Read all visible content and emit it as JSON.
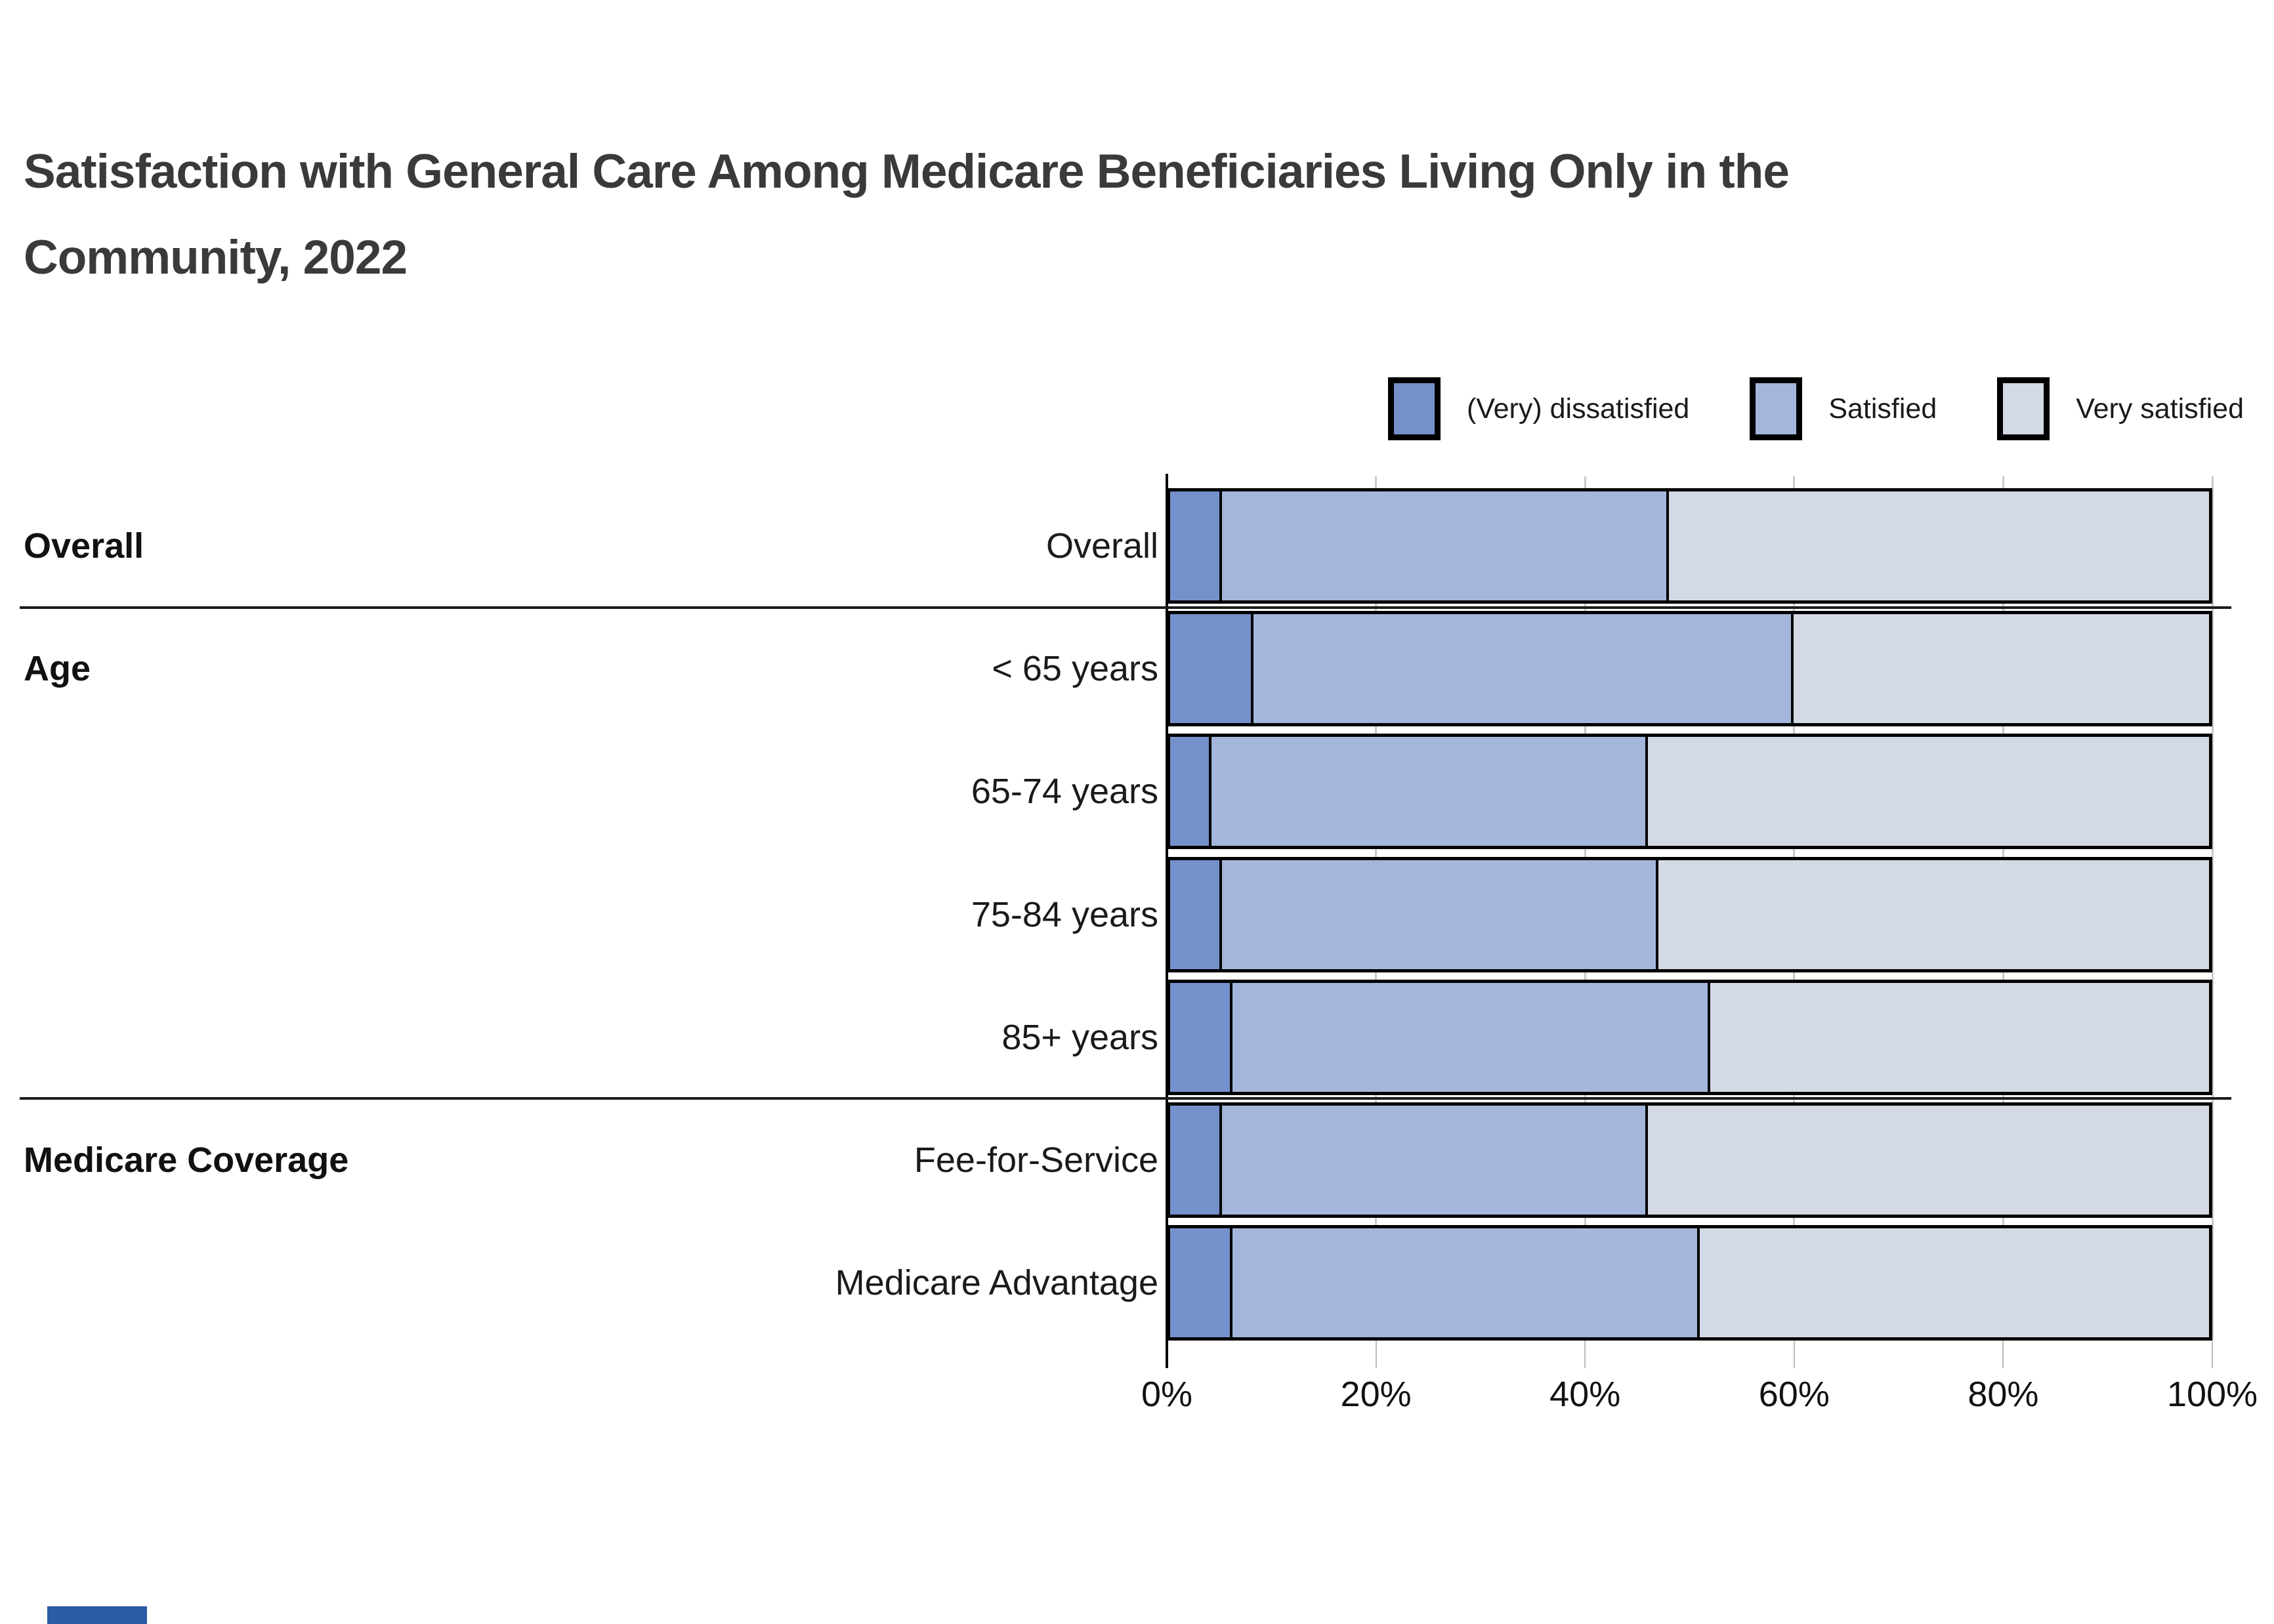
{
  "title": {
    "line1": "Satisfaction with General Care Among Medicare Beneficiaries Living Only in the",
    "line2": "Community, 2022"
  },
  "legend": [
    {
      "label": "(Very) dissatisfied",
      "color": "#7591CC"
    },
    {
      "label": "Satisfied",
      "color": "#A4B6DB"
    },
    {
      "label": "Very satisfied",
      "color": "#D3D9E5"
    }
  ],
  "chart_data": {
    "type": "bar",
    "orientation": "horizontal",
    "stacked": true,
    "title": "Satisfaction with General Care Among Medicare Beneficiaries Living Only in the Community, 2022",
    "categories": [
      "Overall",
      "< 65 years",
      "65-74 years",
      "75-84 years",
      "85+ years",
      "Fee-for-Service",
      "Medicare Advantage"
    ],
    "groups": [
      {
        "label": "Overall",
        "row_count": 1
      },
      {
        "label": "Age",
        "row_count": 4
      },
      {
        "label": "Medicare Coverage",
        "row_count": 2
      }
    ],
    "series": [
      {
        "name": "(Very) dissatisfied",
        "color": "#7591CC",
        "values": [
          5,
          8,
          4,
          5,
          6,
          5,
          6
        ]
      },
      {
        "name": "Satisfied",
        "color": "#A4B6DB",
        "values": [
          43,
          52,
          42,
          42,
          46,
          41,
          45
        ]
      },
      {
        "name": "Very satisfied",
        "color": "#D3D9E5",
        "values": [
          52,
          40,
          54,
          53,
          48,
          54,
          49
        ]
      }
    ],
    "x_ticks": [
      "0%",
      "20%",
      "40%",
      "60%",
      "80%",
      "100%"
    ],
    "xlim": [
      0,
      100
    ],
    "grid": "vertical",
    "legend_position": "top-right"
  },
  "footer_mark_color": "#2B5BA6"
}
